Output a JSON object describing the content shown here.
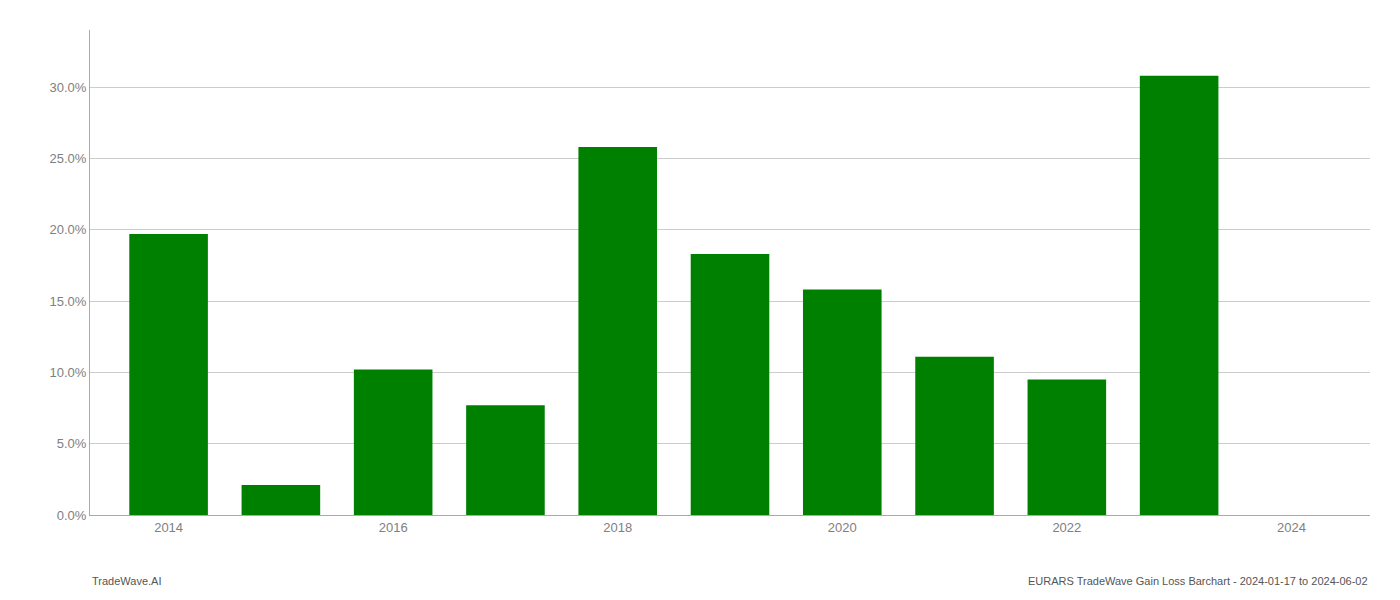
{
  "chart_data": {
    "type": "bar",
    "x": [
      2014,
      2015,
      2016,
      2017,
      2018,
      2019,
      2020,
      2021,
      2022,
      2023
    ],
    "values": [
      0.197,
      0.021,
      0.102,
      0.077,
      0.258,
      0.183,
      0.158,
      0.111,
      0.095,
      0.308
    ],
    "color": "#008000",
    "xlim": [
      2013.3,
      2024.7
    ],
    "xticks": [
      2014,
      2016,
      2018,
      2020,
      2022,
      2024
    ],
    "ylim": [
      0,
      0.34
    ],
    "yticks": [
      {
        "value": 0.0,
        "label": "0.0%"
      },
      {
        "value": 0.05,
        "label": "5.0%"
      },
      {
        "value": 0.1,
        "label": "10.0%"
      },
      {
        "value": 0.15,
        "label": "15.0%"
      },
      {
        "value": 0.2,
        "label": "20.0%"
      },
      {
        "value": 0.25,
        "label": "25.0%"
      },
      {
        "value": 0.3,
        "label": "30.0%"
      }
    ],
    "grid": true,
    "annotations": [
      "TradeWave.AI",
      "EURARS TradeWave Gain Loss Barchart - 2024-01-17 to 2024-06-02"
    ]
  }
}
